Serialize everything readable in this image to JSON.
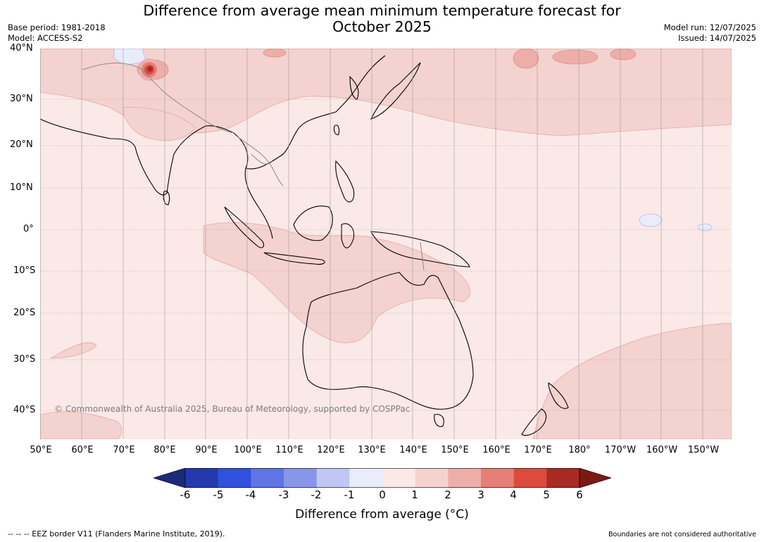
{
  "title": "Difference from average mean minimum temperature forecast for",
  "title_line2": "October 2025",
  "base_period": "Base period: 1981-2018",
  "model": "Model: ACCESS-S2",
  "model_run": "Model run: 12/07/2025",
  "issued": "Issued: 14/07/2025",
  "lat_labels": [
    "40°N",
    "30°N",
    "20°N",
    "10°N",
    "0°",
    "10°S",
    "20°S",
    "30°S",
    "40°S"
  ],
  "lon_labels": [
    "50°E",
    "60°E",
    "70°E",
    "80°E",
    "90°E",
    "100°E",
    "110°E",
    "120°E",
    "130°E",
    "140°E",
    "150°E",
    "160°E",
    "170°E",
    "180°",
    "170°W",
    "160°W",
    "150°W"
  ],
  "copyright": "© Commonwealth of Australia 2025, Bureau of Meteorology, supported by COSPPac",
  "colorbar": {
    "ticks": [
      "-6",
      "-5",
      "-4",
      "-3",
      "-2",
      "-1",
      "0",
      "1",
      "2",
      "3",
      "4",
      "5",
      "6"
    ],
    "colors": [
      "#1c2a7a",
      "#2438b0",
      "#3051e0",
      "#5f74e6",
      "#8896ea",
      "#c0c7f3",
      "#e9ecfb",
      "#fbe9e7",
      "#f4d2cf",
      "#edaeaa",
      "#e67f76",
      "#dc4b3d",
      "#a92a22",
      "#7a1a14"
    ],
    "label": "Difference from average (°C)"
  },
  "footer_left": "--  --  -- EEZ border V11 (Flanders Marine Institute, 2019).",
  "footer_right": "Boundaries are not considered authoritative"
}
